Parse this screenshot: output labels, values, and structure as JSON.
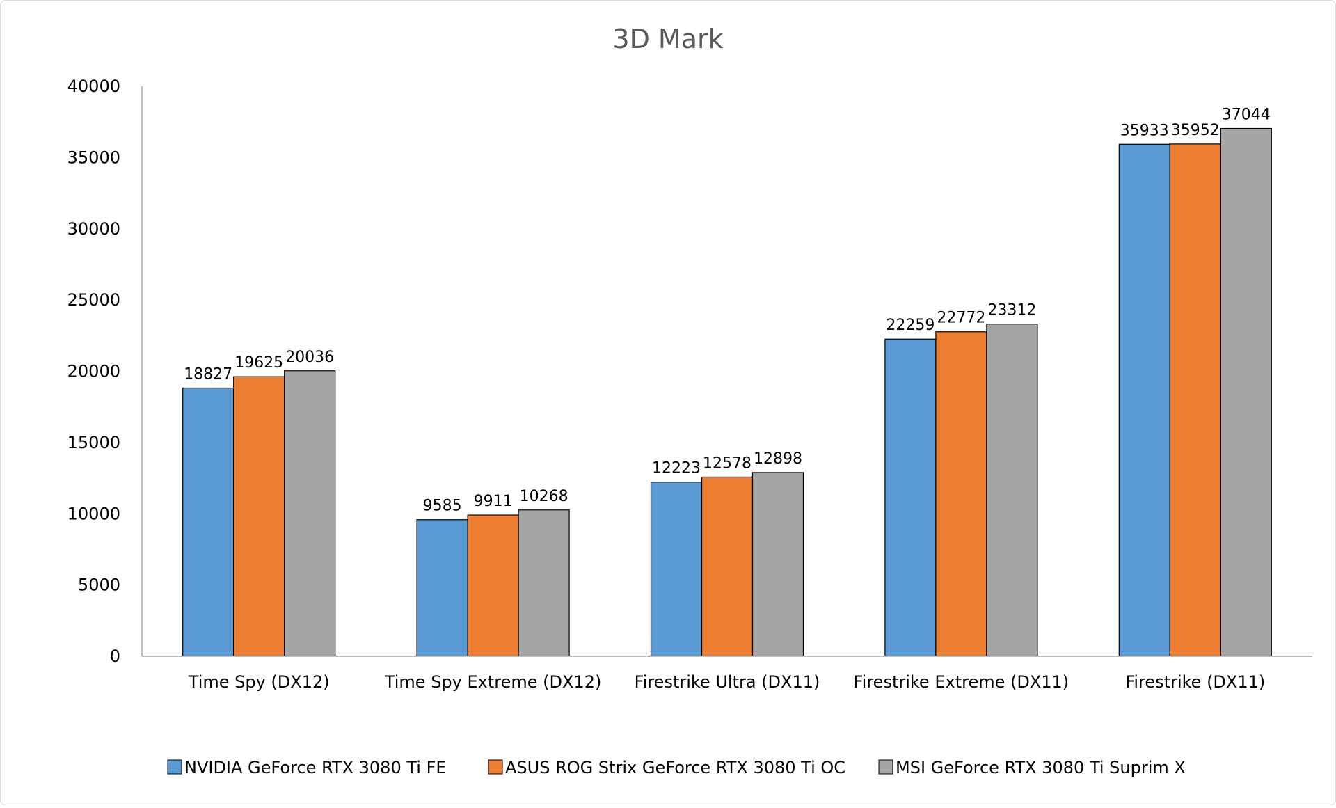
{
  "chart_data": {
    "type": "bar",
    "title": "3D Mark",
    "xlabel": "",
    "ylabel": "",
    "ylim": [
      0,
      40000
    ],
    "yticks": [
      0,
      5000,
      10000,
      15000,
      20000,
      25000,
      30000,
      35000,
      40000
    ],
    "grid": false,
    "legend_position": "bottom",
    "categories": [
      "Time Spy (DX12)",
      "Time Spy Extreme (DX12)",
      "Firestrike Ultra (DX11)",
      "Firestrike Extreme (DX11)",
      "Firestrike (DX11)"
    ],
    "series": [
      {
        "name": "NVIDIA GeForce RTX 3080 Ti FE",
        "color": "#5b9bd5",
        "values": [
          18827,
          9585,
          12223,
          22259,
          35933
        ]
      },
      {
        "name": "ASUS ROG Strix GeForce RTX 3080 Ti OC",
        "color": "#ed7d31",
        "values": [
          19625,
          9911,
          12578,
          22772,
          35952
        ]
      },
      {
        "name": "MSI GeForce RTX 3080 Ti Suprim X",
        "color": "#a5a5a5",
        "values": [
          20036,
          10268,
          12898,
          23312,
          37044
        ]
      }
    ]
  }
}
